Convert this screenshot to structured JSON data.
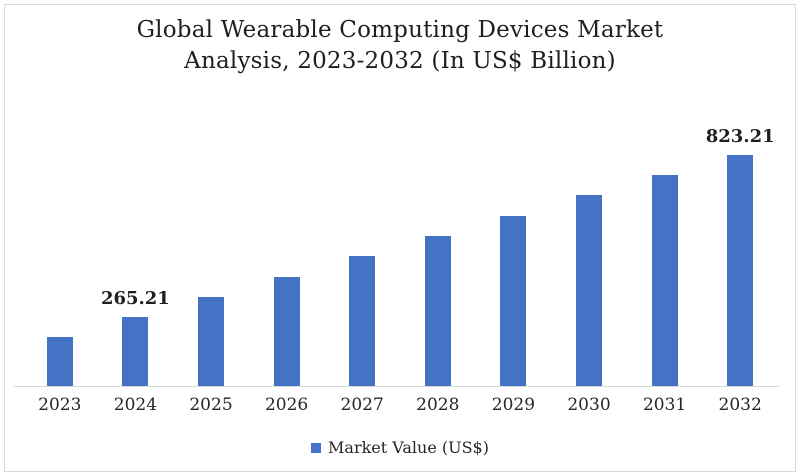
{
  "chart": {
    "title_line1": "Global Wearable Computing Devices Market",
    "title_line2": "Analysis, 2023-2032 (In US$ Billion)",
    "legend_label": "Market Value (US$)",
    "colors": {
      "bar": "#4472C4",
      "axis_line": "#D9D9D9",
      "frame_border": "#D9D9D9",
      "text": "#262626"
    }
  },
  "chart_data": {
    "type": "bar",
    "title": "Global Wearable Computing Devices Market Analysis, 2023-2032 (In US$ Billion)",
    "series_name": "Market Value (US$)",
    "categories": [
      "2023",
      "2024",
      "2025",
      "2026",
      "2027",
      "2028",
      "2029",
      "2030",
      "2031",
      "2032"
    ],
    "values": [
      195.46,
      265.21,
      334.96,
      404.71,
      474.46,
      544.21,
      613.96,
      683.71,
      753.46,
      823.21
    ],
    "data_labels": [
      "",
      "265.21",
      "",
      "",
      "",
      "",
      "",
      "",
      "",
      "823.21"
    ],
    "xlabel": "",
    "ylabel": "",
    "ylim": [
      28,
      978
    ],
    "grid": false,
    "y_axis_visible": false,
    "legend_position": "bottom",
    "bar_color": "#4472C4"
  }
}
